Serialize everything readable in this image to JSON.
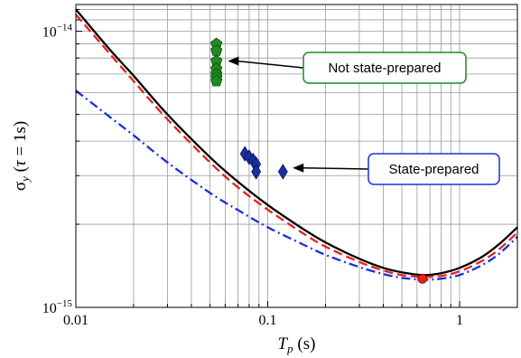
{
  "chart_data": {
    "type": "line",
    "xscale": "log",
    "yscale": "log",
    "xlim": [
      0.01,
      2
    ],
    "ylim": [
      1e-15,
      1.25e-14
    ],
    "grid": true,
    "xlabel": "T_p (s)",
    "ylabel": "σ_y (τ = 1s)",
    "x_ticks": [
      {
        "value": 0.01,
        "label": "0.01"
      },
      {
        "value": 0.1,
        "label": "0.1"
      },
      {
        "value": 1,
        "label": "1"
      }
    ],
    "y_ticks": [
      {
        "value": 1e-14,
        "base": "10",
        "exp": "−14"
      },
      {
        "value": 1e-15,
        "base": "10",
        "exp": "−15"
      }
    ],
    "series": [
      {
        "kind": "line",
        "style": "solid",
        "color": "#000000",
        "x": [
          0.01,
          0.015,
          0.02,
          0.03,
          0.05,
          0.07,
          0.1,
          0.15,
          0.2,
          0.3,
          0.4,
          0.5,
          0.65,
          0.8,
          1.0,
          1.3,
          1.6,
          2.0
        ],
        "y": [
          1.2e-14,
          8.6e-15,
          6.9e-15,
          5e-15,
          3.5e-15,
          2.85e-15,
          2.35e-15,
          1.94e-15,
          1.72e-15,
          1.5e-15,
          1.39e-15,
          1.34e-15,
          1.31e-15,
          1.33e-15,
          1.39e-15,
          1.52e-15,
          1.69e-15,
          1.95e-15
        ]
      },
      {
        "kind": "line",
        "style": "dashed",
        "color": "#e8201a",
        "x": [
          0.01,
          0.015,
          0.02,
          0.03,
          0.05,
          0.07,
          0.1,
          0.15,
          0.2,
          0.3,
          0.4,
          0.5,
          0.65,
          0.8,
          1.0,
          1.3,
          1.6,
          2.0
        ],
        "y": [
          1.15e-14,
          8.3e-15,
          6.6e-15,
          4.8e-15,
          3.35e-15,
          2.72e-15,
          2.26e-15,
          1.87e-15,
          1.66e-15,
          1.46e-15,
          1.36e-15,
          1.31e-15,
          1.29e-15,
          1.3e-15,
          1.35e-15,
          1.47e-15,
          1.62e-15,
          1.87e-15
        ]
      },
      {
        "kind": "line",
        "style": "dashdot",
        "color": "#1a2fe0",
        "x": [
          0.01,
          0.015,
          0.02,
          0.03,
          0.05,
          0.07,
          0.1,
          0.15,
          0.2,
          0.3,
          0.4,
          0.5,
          0.65,
          0.8,
          1.0,
          1.3,
          1.6,
          2.0
        ],
        "y": [
          6.1e-15,
          4.9e-15,
          4.2e-15,
          3.35e-15,
          2.6e-15,
          2.25e-15,
          1.95e-15,
          1.7e-15,
          1.55e-15,
          1.4e-15,
          1.32e-15,
          1.28e-15,
          1.26e-15,
          1.27e-15,
          1.31e-15,
          1.42e-15,
          1.56e-15,
          1.8e-15
        ]
      },
      {
        "kind": "scatter",
        "marker": "pentagon",
        "color": "#1e8c1e",
        "x": [
          0.054,
          0.054,
          0.054,
          0.054,
          0.054,
          0.054,
          0.054
        ],
        "y": [
          9e-15,
          8.5e-15,
          7.8e-15,
          7.3e-15,
          7e-15,
          6.8e-15,
          6.6e-15
        ]
      },
      {
        "kind": "scatter",
        "marker": "diamond",
        "color": "#1a2fa0",
        "x": [
          0.076,
          0.08,
          0.084,
          0.087,
          0.087,
          0.12
        ],
        "y": [
          3.6e-15,
          3.5e-15,
          3.4e-15,
          3.3e-15,
          3.1e-15,
          3.1e-15
        ]
      },
      {
        "kind": "scatter",
        "marker": "circle",
        "color": "#e8201a",
        "x": [
          0.64
        ],
        "y": [
          1.27e-15
        ]
      }
    ],
    "annotations": [
      {
        "text": "Not state-prepared",
        "color": "#1e8c1e",
        "bg": "#ffffff",
        "arrow_to": [
          0.062,
          7.8e-15
        ],
        "anchor": "box-right-top"
      },
      {
        "text": "State-prepared",
        "color": "#1a2fe0",
        "bg": "#ffffff",
        "arrow_to": [
          0.135,
          3.2e-15
        ],
        "anchor": "box-right-mid"
      }
    ]
  }
}
